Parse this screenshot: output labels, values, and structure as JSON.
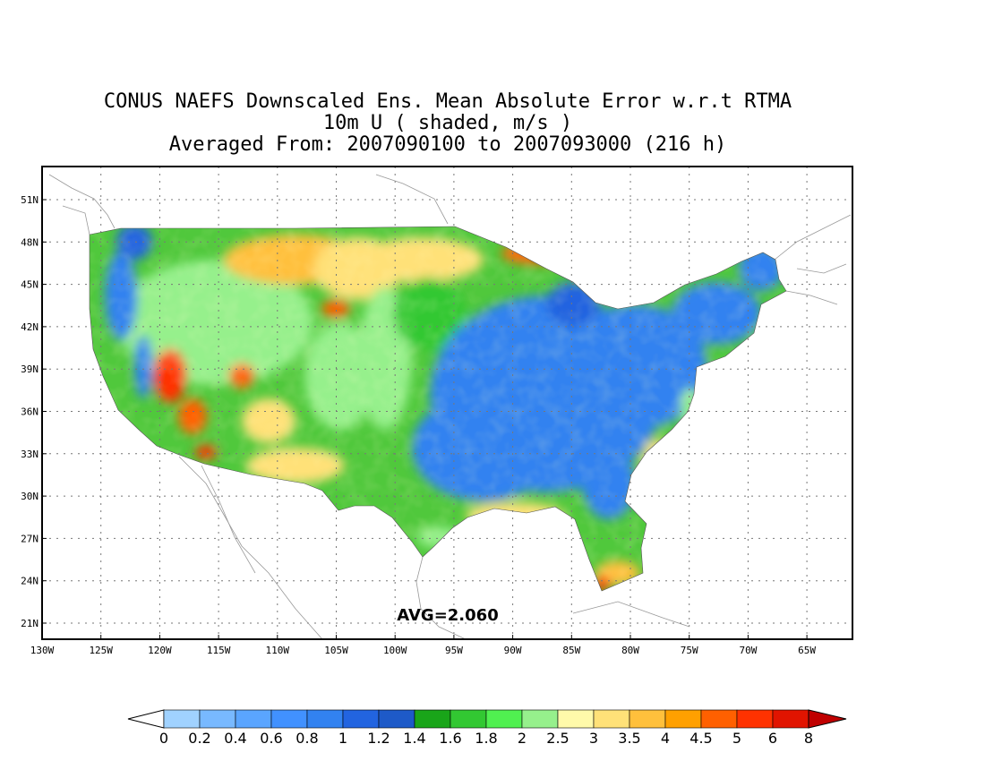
{
  "title_lines": [
    "CONUS NAEFS Downscaled Ens. Mean Absolute Error w.r.t RTMA",
    "10m U ( shaded, m/s )",
    "Averaged From: 2007090100 to 2007093000 (216 h)"
  ],
  "map": {
    "lon_labels": [
      "130W",
      "125W",
      "120W",
      "115W",
      "110W",
      "105W",
      "100W",
      "95W",
      "90W",
      "85W",
      "80W",
      "75W",
      "70W",
      "65W"
    ],
    "lat_labels": [
      "51N",
      "48N",
      "45N",
      "42N",
      "39N",
      "36N",
      "33N",
      "30N",
      "27N",
      "24N",
      "21N"
    ],
    "annotation": "AVG=2.060",
    "grid": true
  },
  "colorbar": {
    "labels": [
      "0",
      "0.2",
      "0.4",
      "0.6",
      "0.8",
      "1",
      "1.2",
      "1.4",
      "1.6",
      "1.8",
      "2",
      "2.5",
      "3",
      "3.5",
      "4",
      "4.5",
      "5",
      "6",
      "8"
    ],
    "colors": [
      "#ffffff",
      "#a0d2ff",
      "#78b9ff",
      "#5aa5ff",
      "#4191ff",
      "#3282f0",
      "#2264e0",
      "#1e5ac8",
      "#19a519",
      "#32c832",
      "#50f050",
      "#96f08c",
      "#fffaaa",
      "#ffe178",
      "#ffc03c",
      "#ffa000",
      "#ff6000",
      "#ff3200",
      "#e11400",
      "#c00000"
    ]
  }
}
